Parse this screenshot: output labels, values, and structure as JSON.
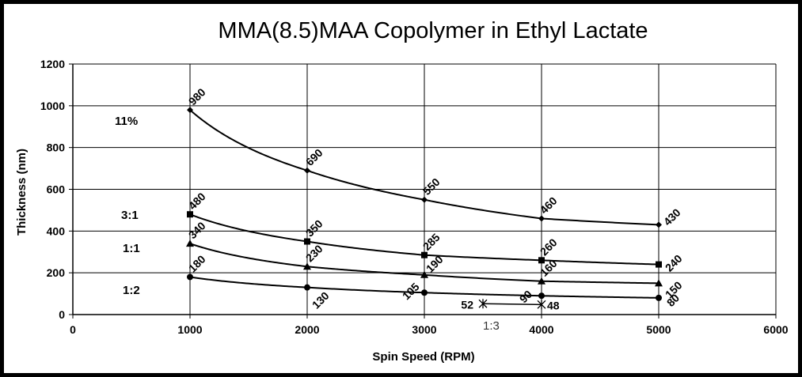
{
  "chart_data": {
    "type": "line",
    "title": "MMA(8.5)MAA Copolymer in Ethyl Lactate",
    "xlabel": "Spin Speed (RPM)",
    "ylabel": "Thickness (nm)",
    "xlim": [
      0,
      6000
    ],
    "ylim": [
      0,
      1200
    ],
    "xticks": [
      0,
      1000,
      2000,
      3000,
      4000,
      5000,
      6000
    ],
    "yticks": [
      0,
      200,
      400,
      600,
      800,
      1000,
      1200
    ],
    "grid": "major gridlines on both axes",
    "legend": "inline series labels at left",
    "series": [
      {
        "name": "11%",
        "marker": "diamond",
        "x": [
          1000,
          2000,
          3000,
          4000,
          5000
        ],
        "y": [
          980,
          690,
          550,
          460,
          430
        ],
        "labels": [
          "980",
          "690",
          "550",
          "460",
          "430"
        ]
      },
      {
        "name": "3:1",
        "marker": "square",
        "x": [
          1000,
          2000,
          3000,
          4000,
          5000
        ],
        "y": [
          480,
          350,
          285,
          260,
          240
        ],
        "labels": [
          "480",
          "350",
          "285",
          "260",
          "240"
        ]
      },
      {
        "name": "1:1",
        "marker": "triangle",
        "x": [
          1000,
          2000,
          3000,
          4000,
          5000
        ],
        "y": [
          340,
          230,
          190,
          160,
          150
        ],
        "labels": [
          "340",
          "230",
          "190",
          "160",
          "150"
        ]
      },
      {
        "name": "1:2",
        "marker": "circle",
        "x": [
          1000,
          2000,
          3000,
          4000,
          5000
        ],
        "y": [
          180,
          130,
          105,
          90,
          80
        ],
        "labels": [
          "180",
          "130",
          "105",
          "90",
          "80"
        ]
      },
      {
        "name": "1:3",
        "marker": "asterisk",
        "x": [
          3500,
          4000
        ],
        "y": [
          52,
          48
        ],
        "labels": [
          "52",
          "48"
        ]
      }
    ]
  }
}
